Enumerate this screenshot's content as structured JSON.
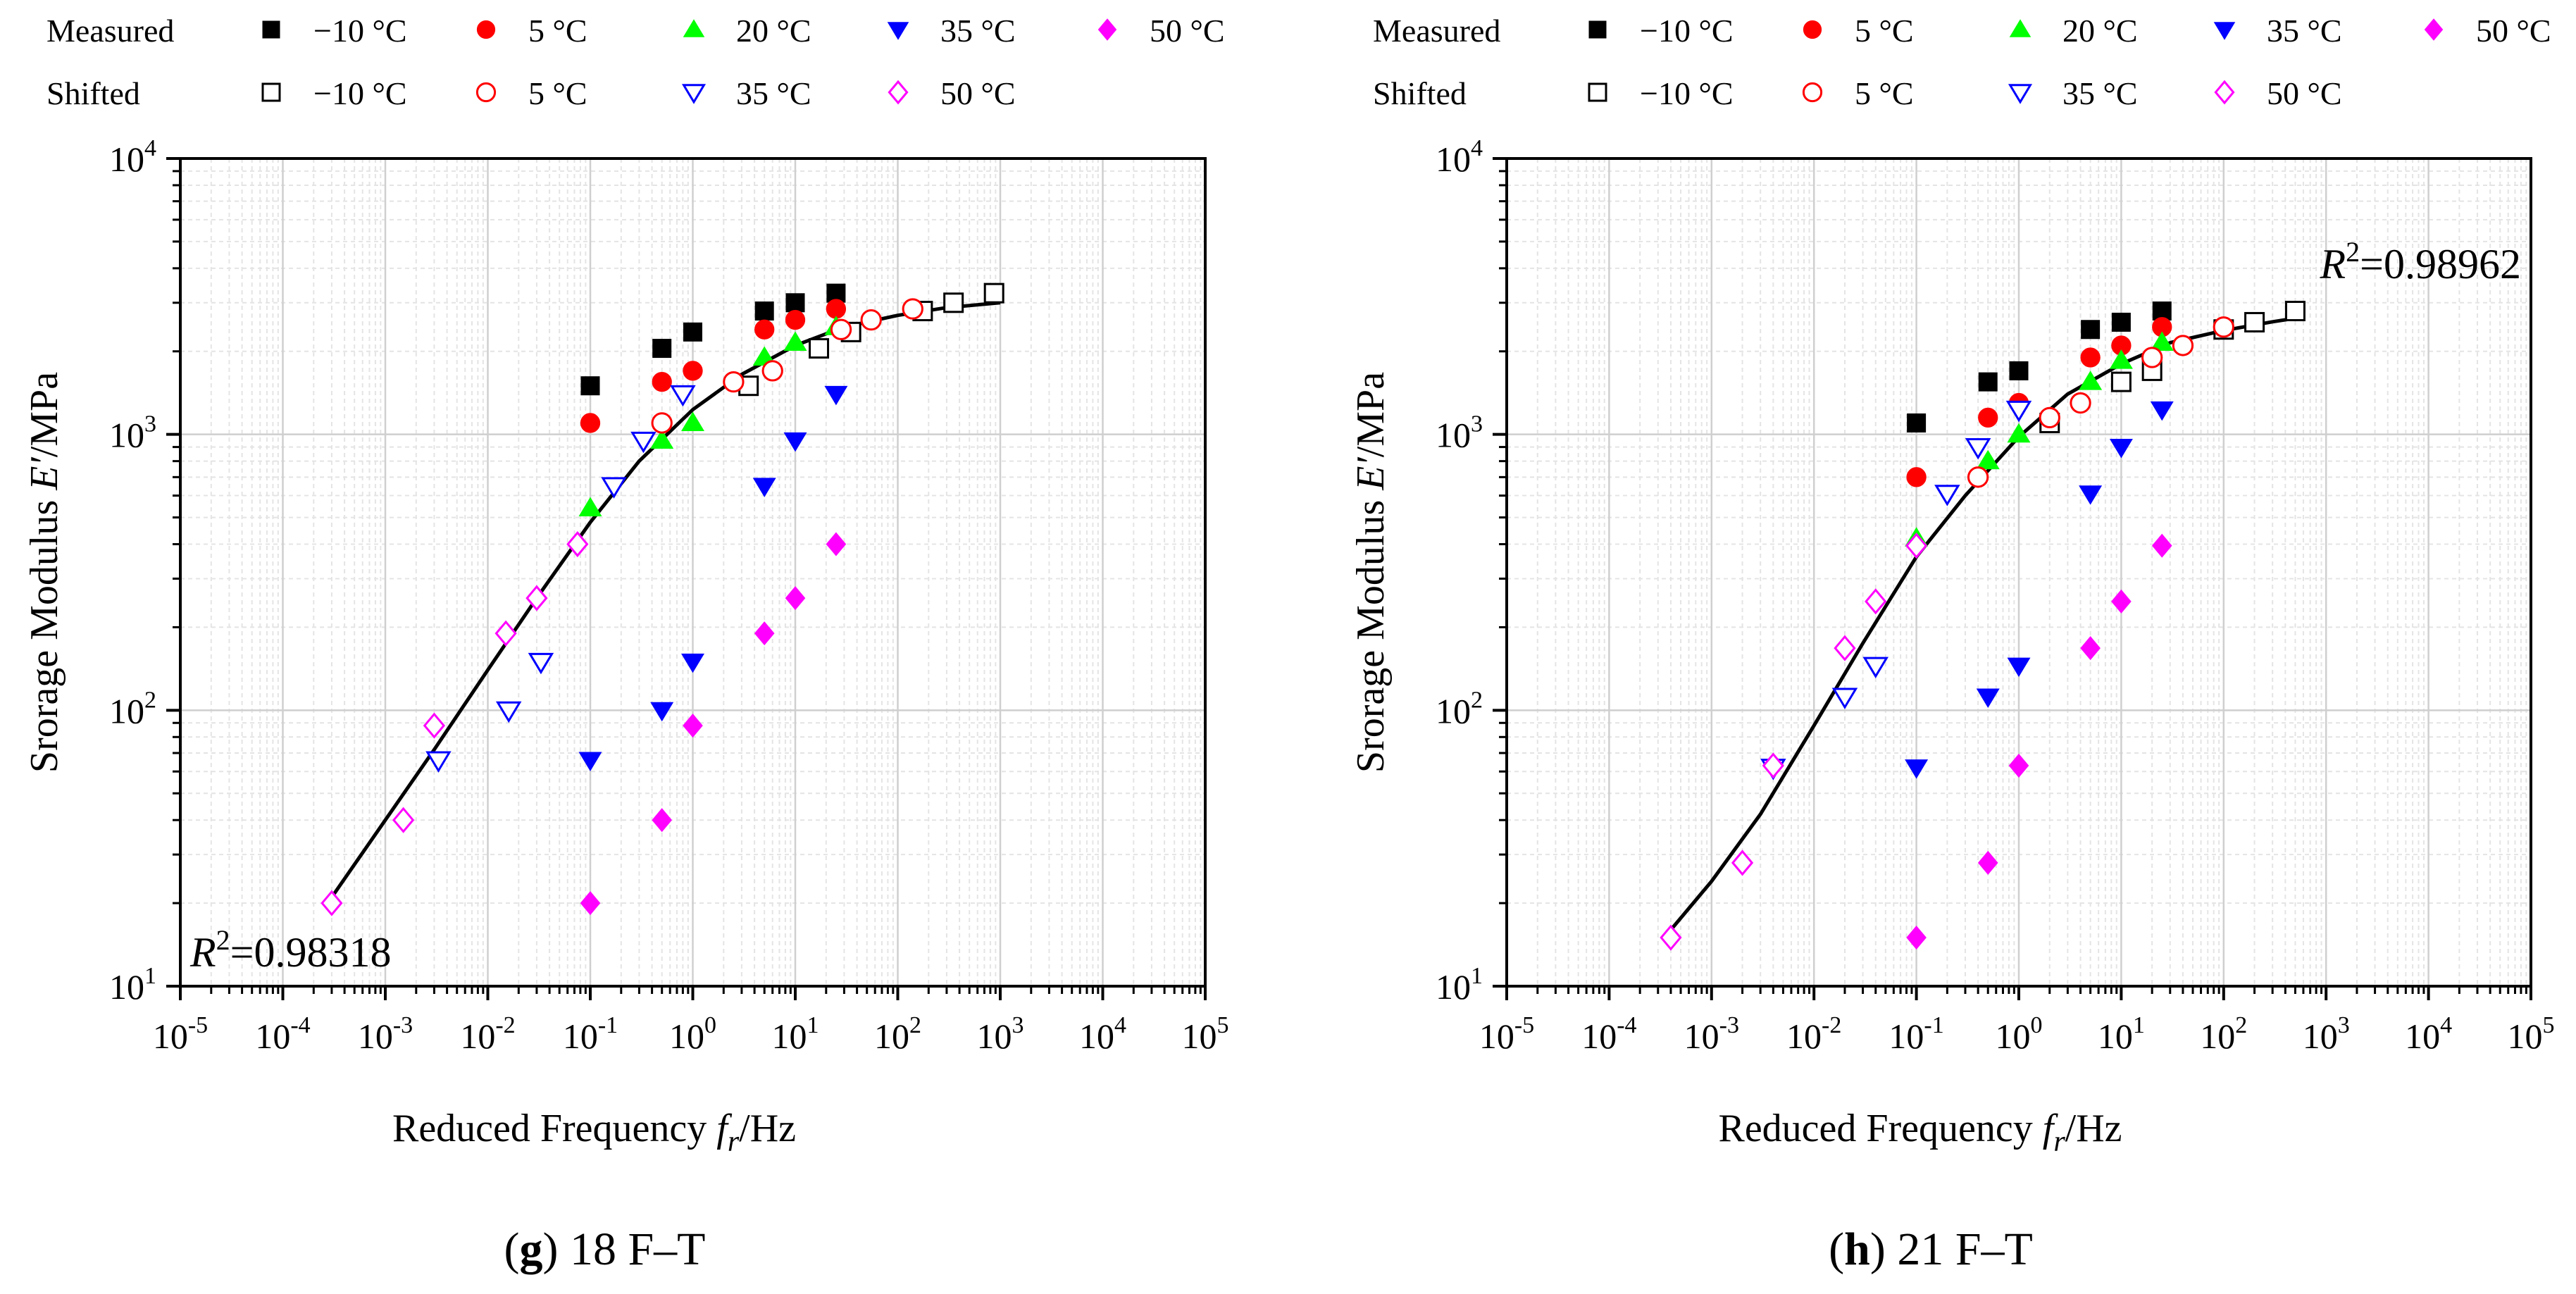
{
  "legend": {
    "row_labels": [
      "Measured",
      "Shifted"
    ],
    "measured_series": [
      "−10 °C",
      "5 °C",
      "20 °C",
      "35 °C",
      "50 °C"
    ],
    "shifted_series": [
      "−10 °C",
      "5 °C",
      "35 °C",
      "50 °C"
    ],
    "colors": {
      "m10": "#000000",
      "t5": "#ff0000",
      "t20": "#00ff00",
      "t35": "#0000ff",
      "t50": "#ff00ff"
    },
    "markers": {
      "m10": "square",
      "t5": "circle",
      "t20": "triangle-up",
      "t35": "triangle-down",
      "t50": "diamond"
    }
  },
  "chart_data": [
    {
      "type": "scatter",
      "caption_letter": "g",
      "caption_text": " 18 F–T",
      "ylabel_pre": "Srorage Modulus ",
      "ylabel_var": "E′",
      "ylabel_post": "/MPa",
      "xlabel_pre": "Reduced Frequency ",
      "xlabel_var": "f",
      "xlabel_sub": "r",
      "xlabel_post": "/Hz",
      "x_scale": "log",
      "y_scale": "log",
      "xlim": [
        1e-05,
        100000.0
      ],
      "ylim": [
        10,
        10000
      ],
      "x_tick_mantissa": "10",
      "x_tick_exponents": [
        "-5",
        "-4",
        "-3",
        "-2",
        "-1",
        "0",
        "1",
        "2",
        "3",
        "4",
        "5"
      ],
      "y_tick_exponents": [
        "1",
        "2",
        "3",
        "4"
      ],
      "grid": true,
      "r2_label": "R",
      "r2_sup": "2",
      "r2_value": "=0.98318",
      "r2_position": "bottom-left",
      "series": [
        {
          "name": "Measured −10 °C",
          "key": "m10",
          "filled": true,
          "points": [
            [
              0.1,
              1500
            ],
            [
              0.5,
              2050
            ],
            [
              1,
              2350
            ],
            [
              5,
              2800
            ],
            [
              10,
              3000
            ],
            [
              25,
              3250
            ]
          ]
        },
        {
          "name": "Measured 5 °C",
          "key": "t5",
          "filled": true,
          "points": [
            [
              0.1,
              1100
            ],
            [
              0.5,
              1550
            ],
            [
              1,
              1700
            ],
            [
              5,
              2400
            ],
            [
              10,
              2600
            ],
            [
              25,
              2850
            ]
          ]
        },
        {
          "name": "Measured 20 °C",
          "key": "t20",
          "filled": true,
          "points": [
            [
              0.1,
              540
            ],
            [
              0.5,
              950
            ],
            [
              1,
              1100
            ],
            [
              5,
              1900
            ],
            [
              10,
              2150
            ],
            [
              25,
              2450
            ]
          ]
        },
        {
          "name": "Measured 35 °C",
          "key": "t35",
          "filled": true,
          "points": [
            [
              0.1,
              66
            ],
            [
              0.5,
              100
            ],
            [
              1,
              150
            ],
            [
              5,
              650
            ],
            [
              10,
              950
            ],
            [
              25,
              1400
            ]
          ]
        },
        {
          "name": "Measured 50 °C",
          "key": "t50",
          "filled": true,
          "points": [
            [
              0.1,
              20
            ],
            [
              0.5,
              40
            ],
            [
              1,
              88
            ],
            [
              5,
              190
            ],
            [
              10,
              255
            ],
            [
              25,
              400
            ]
          ]
        },
        {
          "name": "Shifted −10 °C",
          "key": "m10",
          "filled": false,
          "points": [
            [
              3.5,
              1500
            ],
            [
              17,
              2050
            ],
            [
              35,
              2350
            ],
            [
              175,
              2800
            ],
            [
              350,
              3000
            ],
            [
              870,
              3250
            ]
          ]
        },
        {
          "name": "Shifted 5 °C",
          "key": "t5",
          "filled": false,
          "points": [
            [
              0.5,
              1100
            ],
            [
              2.5,
              1550
            ],
            [
              6,
              1700
            ],
            [
              28,
              2400
            ],
            [
              55,
              2600
            ],
            [
              140,
              2850
            ]
          ]
        },
        {
          "name": "Shifted 35 °C",
          "key": "t35",
          "filled": false,
          "points": [
            [
              0.0033,
              66
            ],
            [
              0.016,
              100
            ],
            [
              0.033,
              150
            ],
            [
              0.17,
              650
            ],
            [
              0.33,
              950
            ],
            [
              0.8,
              1400
            ]
          ]
        },
        {
          "name": "Shifted 50 °C",
          "key": "t50",
          "filled": false,
          "points": [
            [
              0.0003,
              20
            ],
            [
              0.0015,
              40
            ],
            [
              0.003,
              88
            ],
            [
              0.015,
              190
            ],
            [
              0.03,
              255
            ],
            [
              0.075,
              400
            ]
          ]
        }
      ],
      "fit_curve": [
        [
          0.0003,
          21
        ],
        [
          0.001,
          40
        ],
        [
          0.003,
          72
        ],
        [
          0.01,
          140
        ],
        [
          0.03,
          255
        ],
        [
          0.1,
          480
        ],
        [
          0.3,
          800
        ],
        [
          1,
          1230
        ],
        [
          3,
          1650
        ],
        [
          10,
          2100
        ],
        [
          30,
          2450
        ],
        [
          100,
          2700
        ],
        [
          300,
          2880
        ],
        [
          1000,
          3000
        ]
      ]
    },
    {
      "type": "scatter",
      "caption_letter": "h",
      "caption_text": " 21 F–T",
      "ylabel_pre": "Srorage Modulus ",
      "ylabel_var": "E′",
      "ylabel_post": "/MPa",
      "xlabel_pre": "Reduced Frequency ",
      "xlabel_var": "f",
      "xlabel_sub": "r",
      "xlabel_post": "/Hz",
      "x_scale": "log",
      "y_scale": "log",
      "xlim": [
        1e-05,
        100000.0
      ],
      "ylim": [
        10,
        10000
      ],
      "x_tick_mantissa": "10",
      "x_tick_exponents": [
        "-5",
        "-4",
        "-3",
        "-2",
        "-1",
        "0",
        "1",
        "2",
        "3",
        "4",
        "5"
      ],
      "y_tick_exponents": [
        "1",
        "2",
        "3",
        "4"
      ],
      "grid": true,
      "r2_label": "R",
      "r2_sup": "2",
      "r2_value": "=0.98962",
      "r2_position": "top-right",
      "series": [
        {
          "name": "Measured −10 °C",
          "key": "m10",
          "filled": true,
          "points": [
            [
              0.1,
              1100
            ],
            [
              0.5,
              1550
            ],
            [
              1,
              1700
            ],
            [
              5,
              2400
            ],
            [
              10,
              2550
            ],
            [
              25,
              2800
            ]
          ]
        },
        {
          "name": "Measured 5 °C",
          "key": "t5",
          "filled": true,
          "points": [
            [
              0.1,
              700
            ],
            [
              0.5,
              1150
            ],
            [
              1,
              1300
            ],
            [
              5,
              1900
            ],
            [
              10,
              2100
            ],
            [
              25,
              2450
            ]
          ]
        },
        {
          "name": "Measured 20 °C",
          "key": "t20",
          "filled": true,
          "points": [
            [
              0.1,
              420
            ],
            [
              0.5,
              800
            ],
            [
              1,
              1000
            ],
            [
              5,
              1550
            ],
            [
              10,
              1850
            ],
            [
              25,
              2150
            ]
          ]
        },
        {
          "name": "Measured 35 °C",
          "key": "t35",
          "filled": true,
          "points": [
            [
              0.1,
              62
            ],
            [
              0.5,
              112
            ],
            [
              1,
              145
            ],
            [
              5,
              610
            ],
            [
              10,
              900
            ],
            [
              25,
              1230
            ]
          ]
        },
        {
          "name": "Measured 50 °C",
          "key": "t50",
          "filled": true,
          "points": [
            [
              0.1,
              15
            ],
            [
              0.5,
              28
            ],
            [
              1,
              63
            ],
            [
              5,
              168
            ],
            [
              10,
              248
            ],
            [
              25,
              395
            ]
          ]
        },
        {
          "name": "Shifted −10 °C",
          "key": "m10",
          "filled": false,
          "points": [
            [
              2,
              1100
            ],
            [
              10,
              1550
            ],
            [
              20,
              1700
            ],
            [
              100,
              2400
            ],
            [
              200,
              2550
            ],
            [
              500,
              2800
            ]
          ]
        },
        {
          "name": "Shifted 5 °C",
          "key": "t5",
          "filled": false,
          "points": [
            [
              0.4,
              700
            ],
            [
              2,
              1150
            ],
            [
              4,
              1300
            ],
            [
              20,
              1900
            ],
            [
              40,
              2100
            ],
            [
              100,
              2450
            ]
          ]
        },
        {
          "name": "Shifted 35 °C",
          "key": "t35",
          "filled": false,
          "points": [
            [
              0.004,
              62
            ],
            [
              0.02,
              112
            ],
            [
              0.04,
              145
            ],
            [
              0.2,
              610
            ],
            [
              0.4,
              900
            ],
            [
              1,
              1230
            ]
          ]
        },
        {
          "name": "Shifted 50 °C",
          "key": "t50",
          "filled": false,
          "points": [
            [
              0.0004,
              15
            ],
            [
              0.002,
              28
            ],
            [
              0.004,
              63
            ],
            [
              0.02,
              168
            ],
            [
              0.04,
              248
            ],
            [
              0.1,
              395
            ]
          ]
        }
      ],
      "fit_curve": [
        [
          0.0004,
          16
        ],
        [
          0.001,
          24
        ],
        [
          0.003,
          42
        ],
        [
          0.01,
          88
        ],
        [
          0.03,
          175
        ],
        [
          0.1,
          360
        ],
        [
          0.3,
          600
        ],
        [
          1,
          980
        ],
        [
          3,
          1400
        ],
        [
          10,
          1800
        ],
        [
          30,
          2150
        ],
        [
          100,
          2380
        ],
        [
          300,
          2560
        ],
        [
          550,
          2650
        ]
      ]
    }
  ]
}
